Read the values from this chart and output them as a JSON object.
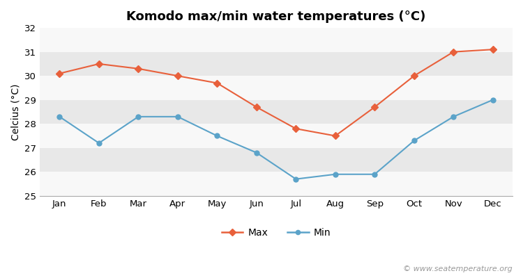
{
  "title": "Komodo max/min water temperatures (°C)",
  "ylabel": "Celcius (°C)",
  "months": [
    "Jan",
    "Feb",
    "Mar",
    "Apr",
    "May",
    "Jun",
    "Jul",
    "Aug",
    "Sep",
    "Oct",
    "Nov",
    "Dec"
  ],
  "max_temps": [
    30.1,
    30.5,
    30.3,
    30.0,
    29.7,
    28.7,
    27.8,
    27.5,
    28.7,
    30.0,
    31.0,
    31.1
  ],
  "min_temps": [
    28.3,
    27.2,
    28.3,
    28.3,
    27.5,
    26.8,
    25.7,
    25.9,
    25.9,
    27.3,
    28.3,
    29.0
  ],
  "max_color": "#e8603b",
  "min_color": "#5ba3c9",
  "fig_bg_color": "#ffffff",
  "plot_bg_color": "#f0f0f0",
  "band_color_light": "#f8f8f8",
  "band_color_dark": "#e8e8e8",
  "ylim": [
    25,
    32
  ],
  "yticks": [
    25,
    26,
    27,
    28,
    29,
    30,
    31,
    32
  ],
  "legend_labels": [
    "Max",
    "Min"
  ],
  "watermark": "© www.seatemperature.org",
  "title_fontsize": 13,
  "label_fontsize": 10,
  "tick_fontsize": 9.5,
  "legend_fontsize": 10,
  "watermark_fontsize": 8
}
